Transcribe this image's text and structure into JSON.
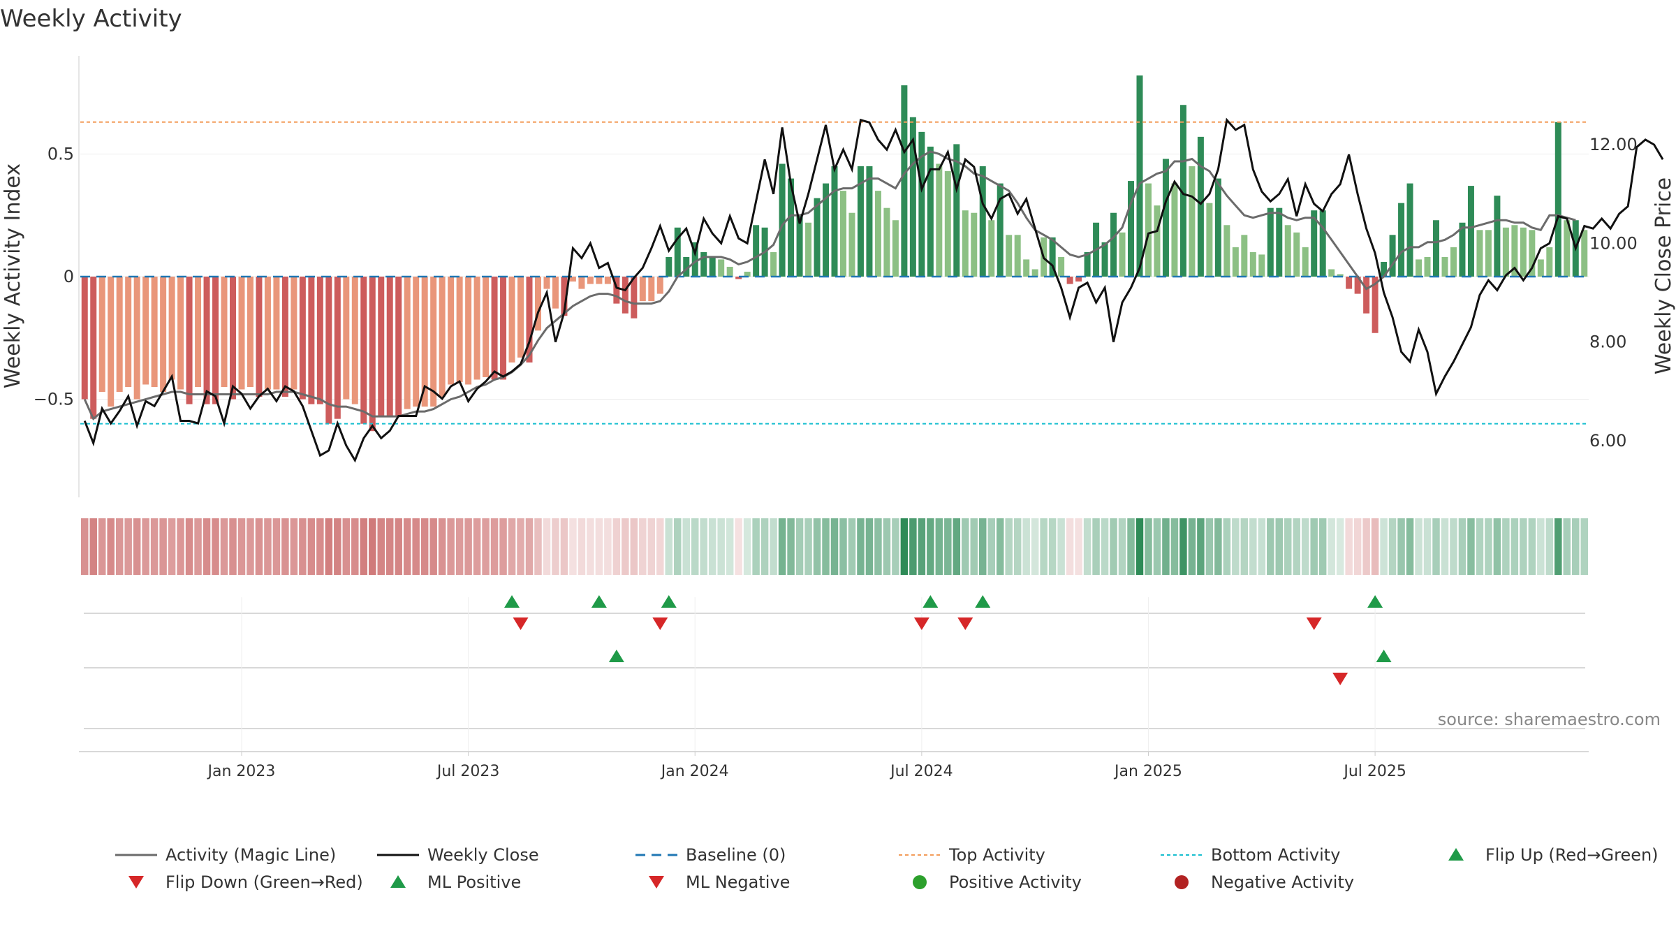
{
  "chart_data": {
    "type": "bar+line",
    "title": "Weekly Activity",
    "ylabel_left": "Weekly Activity Index",
    "ylabel_right": "Weekly Close Price",
    "source": "source: sharemaestro.com",
    "x_ticks": [
      "Jan 2023",
      "Jul 2023",
      "Jan 2024",
      "Jul 2024",
      "Jan 2025",
      "Jul 2025"
    ],
    "x_tick_weeks": [
      18,
      44,
      70,
      96,
      122,
      148
    ],
    "y_left_ticks": [
      {
        "v": 0.5,
        "label": "0.5"
      },
      {
        "v": 0,
        "label": "0"
      },
      {
        "v": -0.5,
        "label": "−0.5"
      }
    ],
    "y_left_range": [
      -0.9,
      0.9
    ],
    "y_right_ticks": [
      {
        "v": 12,
        "label": "12.00"
      },
      {
        "v": 10,
        "label": "10.00"
      },
      {
        "v": 8,
        "label": "8.00"
      },
      {
        "v": 6,
        "label": "6.00"
      }
    ],
    "y_right_range": [
      4.85,
      13.8
    ],
    "top_activity": 0.63,
    "bottom_activity": -0.6,
    "baseline": 0,
    "activity": [
      -0.5,
      -0.58,
      -0.47,
      -0.53,
      -0.47,
      -0.45,
      -0.5,
      -0.44,
      -0.45,
      -0.47,
      -0.42,
      -0.46,
      -0.52,
      -0.45,
      -0.52,
      -0.52,
      -0.45,
      -0.5,
      -0.46,
      -0.45,
      -0.49,
      -0.46,
      -0.46,
      -0.49,
      -0.46,
      -0.5,
      -0.52,
      -0.52,
      -0.6,
      -0.58,
      -0.5,
      -0.52,
      -0.6,
      -0.63,
      -0.57,
      -0.57,
      -0.57,
      -0.54,
      -0.53,
      -0.53,
      -0.53,
      -0.49,
      -0.44,
      -0.43,
      -0.44,
      -0.42,
      -0.41,
      -0.42,
      -0.42,
      -0.35,
      -0.33,
      -0.35,
      -0.22,
      -0.05,
      -0.13,
      -0.16,
      -0.02,
      -0.05,
      -0.03,
      -0.03,
      -0.03,
      -0.11,
      -0.15,
      -0.17,
      -0.1,
      -0.1,
      -0.07,
      0.08,
      0.2,
      0.08,
      0.14,
      0.1,
      0.08,
      0.07,
      0.04,
      -0.01,
      0.02,
      0.21,
      0.2,
      0.1,
      0.46,
      0.4,
      0.25,
      0.22,
      0.32,
      0.38,
      0.45,
      0.35,
      0.26,
      0.45,
      0.45,
      0.35,
      0.28,
      0.23,
      0.78,
      0.65,
      0.59,
      0.53,
      0.46,
      0.43,
      0.54,
      0.27,
      0.26,
      0.45,
      0.23,
      0.38,
      0.17,
      0.17,
      0.07,
      0.03,
      0.16,
      0.16,
      0.08,
      -0.03,
      -0.02,
      0.1,
      0.22,
      0.14,
      0.26,
      0.18,
      0.39,
      0.82,
      0.38,
      0.29,
      0.48,
      0.38,
      0.7,
      0.45,
      0.57,
      0.3,
      0.4,
      0.21,
      0.12,
      0.17,
      0.1,
      0.09,
      0.28,
      0.28,
      0.21,
      0.18,
      0.12,
      0.27,
      0.27,
      0.03,
      0.01,
      -0.05,
      -0.07,
      -0.15,
      -0.23,
      0.06,
      0.17,
      0.3,
      0.38,
      0.07,
      0.08,
      0.23,
      0.08,
      0.12,
      0.22,
      0.37,
      0.19,
      0.19,
      0.33,
      0.2,
      0.21,
      0.2,
      0.19,
      0.07,
      0.12,
      0.63,
      0.23,
      0.23,
      0.19
    ],
    "magic_line": [
      -0.5,
      -0.58,
      -0.55,
      -0.54,
      -0.53,
      -0.52,
      -0.51,
      -0.5,
      -0.49,
      -0.48,
      -0.47,
      -0.47,
      -0.48,
      -0.48,
      -0.48,
      -0.48,
      -0.48,
      -0.48,
      -0.48,
      -0.48,
      -0.48,
      -0.48,
      -0.47,
      -0.47,
      -0.47,
      -0.48,
      -0.49,
      -0.5,
      -0.52,
      -0.53,
      -0.53,
      -0.54,
      -0.55,
      -0.57,
      -0.57,
      -0.57,
      -0.57,
      -0.56,
      -0.55,
      -0.55,
      -0.54,
      -0.52,
      -0.5,
      -0.49,
      -0.47,
      -0.45,
      -0.44,
      -0.42,
      -0.41,
      -0.39,
      -0.36,
      -0.32,
      -0.26,
      -0.21,
      -0.18,
      -0.15,
      -0.12,
      -0.1,
      -0.08,
      -0.07,
      -0.07,
      -0.08,
      -0.1,
      -0.11,
      -0.11,
      -0.11,
      -0.1,
      -0.06,
      0.0,
      0.03,
      0.06,
      0.08,
      0.08,
      0.08,
      0.07,
      0.05,
      0.06,
      0.08,
      0.1,
      0.13,
      0.21,
      0.25,
      0.25,
      0.26,
      0.29,
      0.32,
      0.35,
      0.36,
      0.36,
      0.38,
      0.4,
      0.4,
      0.38,
      0.36,
      0.42,
      0.46,
      0.49,
      0.51,
      0.5,
      0.48,
      0.47,
      0.45,
      0.42,
      0.41,
      0.39,
      0.37,
      0.35,
      0.3,
      0.24,
      0.19,
      0.17,
      0.15,
      0.12,
      0.09,
      0.08,
      0.09,
      0.11,
      0.13,
      0.16,
      0.2,
      0.3,
      0.38,
      0.4,
      0.42,
      0.43,
      0.47,
      0.47,
      0.48,
      0.45,
      0.43,
      0.38,
      0.33,
      0.29,
      0.25,
      0.24,
      0.25,
      0.26,
      0.26,
      0.24,
      0.23,
      0.24,
      0.24,
      0.2,
      0.15,
      0.1,
      0.05,
      0.0,
      -0.05,
      -0.03,
      0.0,
      0.05,
      0.1,
      0.12,
      0.12,
      0.14,
      0.14,
      0.15,
      0.17,
      0.2,
      0.2,
      0.21,
      0.22,
      0.23,
      0.23,
      0.22,
      0.22,
      0.2,
      0.19,
      0.25,
      0.25,
      0.24,
      0.23
    ],
    "weekly_close": [
      6.4,
      5.95,
      6.65,
      6.35,
      6.6,
      6.9,
      6.3,
      6.8,
      6.7,
      7.0,
      7.3,
      6.4,
      6.4,
      6.35,
      7.0,
      6.9,
      6.35,
      7.1,
      6.95,
      6.65,
      6.9,
      7.05,
      6.8,
      7.1,
      7.0,
      6.7,
      6.2,
      5.7,
      5.8,
      6.35,
      5.9,
      5.6,
      6.05,
      6.3,
      6.05,
      6.2,
      6.5,
      6.5,
      6.5,
      7.1,
      7.0,
      6.85,
      7.1,
      7.2,
      6.8,
      7.05,
      7.2,
      7.4,
      7.3,
      7.4,
      7.55,
      8.0,
      8.6,
      9.0,
      8.0,
      8.6,
      9.9,
      9.7,
      10.0,
      9.5,
      9.6,
      9.1,
      9.05,
      9.3,
      9.5,
      9.9,
      10.35,
      9.85,
      10.1,
      10.3,
      9.8,
      10.5,
      10.2,
      10.0,
      10.55,
      10.1,
      10.0,
      10.85,
      11.7,
      11.0,
      12.35,
      11.2,
      10.4,
      11.0,
      11.7,
      12.4,
      11.5,
      11.9,
      11.5,
      12.5,
      12.45,
      12.1,
      11.9,
      12.3,
      11.85,
      12.1,
      11.1,
      11.5,
      11.5,
      11.85,
      11.1,
      11.7,
      11.55,
      10.8,
      10.5,
      10.9,
      11.0,
      10.6,
      10.9,
      10.3,
      9.7,
      9.55,
      9.1,
      8.5,
      9.1,
      9.2,
      8.8,
      9.1,
      8.0,
      8.8,
      9.1,
      9.5,
      10.2,
      10.25,
      10.85,
      11.25,
      11.0,
      10.95,
      10.8,
      11.0,
      11.5,
      12.5,
      12.3,
      12.4,
      11.5,
      11.05,
      10.85,
      11.0,
      11.3,
      10.55,
      11.2,
      10.8,
      10.65,
      11.0,
      11.2,
      11.8,
      11.0,
      10.3,
      9.8,
      9.0,
      8.5,
      7.8,
      7.6,
      8.25,
      7.8,
      6.95,
      7.3,
      7.6,
      7.95,
      8.3,
      8.95,
      9.25,
      9.05,
      9.35,
      9.5,
      9.25,
      9.5,
      9.9,
      10.0,
      10.55,
      10.5,
      9.9,
      10.35,
      10.3,
      10.5,
      10.3,
      10.6,
      10.75,
      11.95,
      12.1,
      12.0,
      11.7
    ],
    "flip_up_row1": [
      49,
      59,
      67,
      97,
      103,
      148
    ],
    "flip_down_row1": [
      50,
      66,
      96,
      101,
      141
    ],
    "ml_positive_row2": [
      61,
      149
    ],
    "ml_negative_row2": [
      144
    ],
    "legend": [
      {
        "label": "Activity (Magic Line)",
        "symbol": "line",
        "color": "#6b6b6b"
      },
      {
        "label": "Weekly Close",
        "symbol": "line",
        "color": "#111111"
      },
      {
        "label": "Baseline (0)",
        "symbol": "dashed",
        "color": "#1f77b4"
      },
      {
        "label": "Top Activity",
        "symbol": "dotted",
        "color": "#f39c5a"
      },
      {
        "label": "Bottom Activity",
        "symbol": "dotted",
        "color": "#17becf"
      },
      {
        "label": "Flip Up (Red→Green)",
        "symbol": "triangle-up",
        "color": "#1f9a48"
      },
      {
        "label": "Flip Down (Green→Red)",
        "symbol": "triangle-down",
        "color": "#d62728"
      },
      {
        "label": "ML Positive",
        "symbol": "triangle-up",
        "color": "#1f9a48"
      },
      {
        "label": "ML Negative",
        "symbol": "triangle-down",
        "color": "#d62728"
      },
      {
        "label": "Positive Activity",
        "symbol": "circle",
        "color": "#2ca02c"
      },
      {
        "label": "Negative Activity",
        "symbol": "circle",
        "color": "#b22222"
      }
    ],
    "colors": {
      "pos_dark": "#2e8b57",
      "pos_light": "#8cc084",
      "neg_dark": "#cd5c5c",
      "neg_light": "#e9967a",
      "close": "#111111",
      "magic": "#6b6b6b"
    }
  }
}
